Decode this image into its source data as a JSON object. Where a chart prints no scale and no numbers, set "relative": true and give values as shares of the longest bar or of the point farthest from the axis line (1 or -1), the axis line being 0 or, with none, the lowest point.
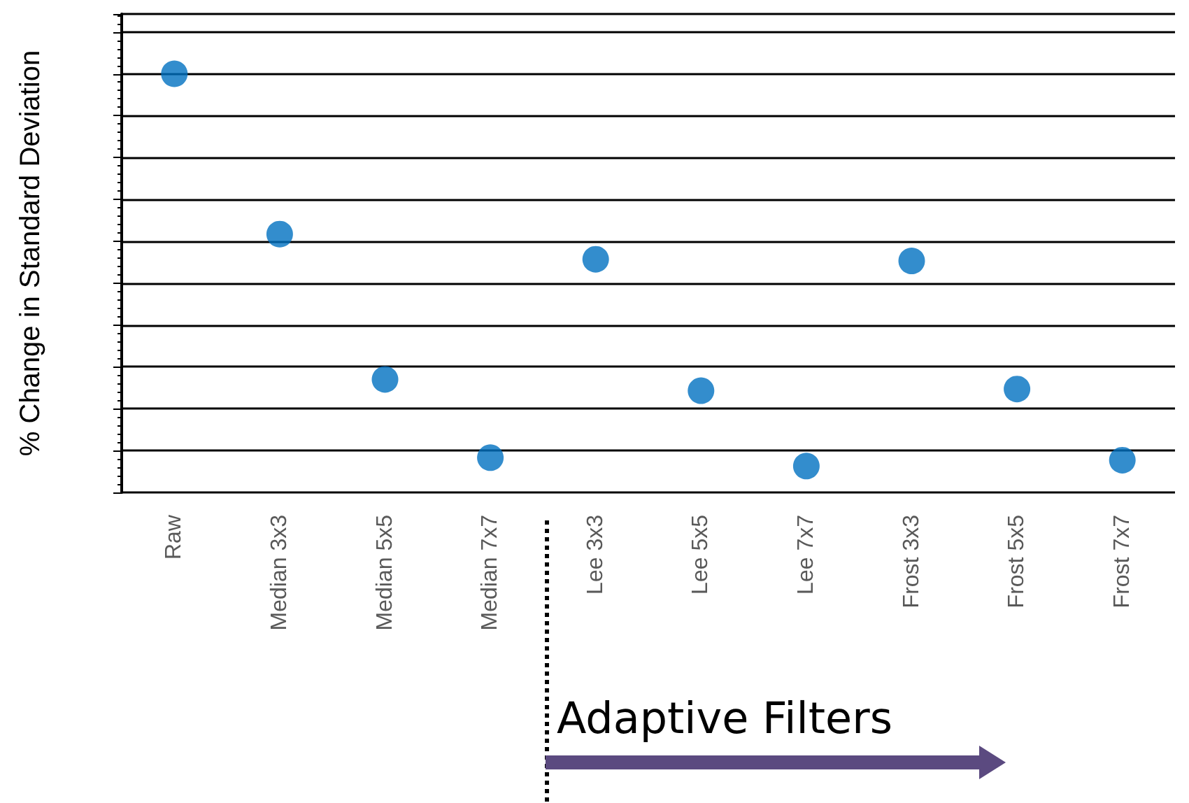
{
  "chart_data": {
    "type": "scatter",
    "relative": true,
    "categories": [
      "Raw",
      "Median 3x3",
      "Median 5x5",
      "Median 7x7",
      "Lee 3x3",
      "Lee 5x5",
      "Lee 7x7",
      "Frost 3x3",
      "Frost 5x5",
      "Frost 7x7"
    ],
    "values": [
      1,
      0.617,
      0.27,
      0.083,
      0.557,
      0.243,
      0.063,
      0.553,
      0.247,
      0.077
    ],
    "color": "#0070c0",
    "marker": "circle",
    "grid": "y",
    "ylabel": "% Change in Standard Deviation",
    "annotations": [
      "Adaptive Filters"
    ]
  }
}
